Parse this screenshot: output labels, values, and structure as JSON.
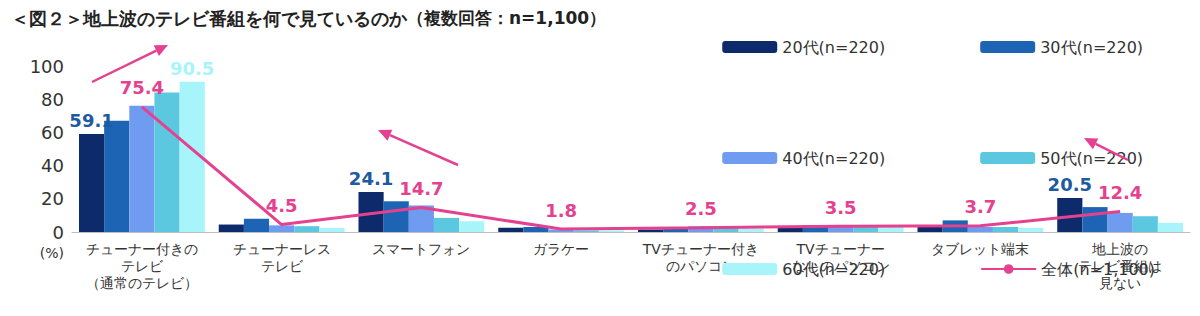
{
  "chart_data": {
    "type": "bar",
    "title": "＜図２＞地上波のテレビ番組を何で見ているのか",
    "subtitle": "（複数回答：n=1,100）",
    "y_label": "(%)",
    "categories": [
      "チューナー付きの\nテレビ\n（通常のテレビ）",
      "チューナーレス\nテレビ",
      "スマートフォン",
      "ガラケー",
      "TVチューナー付き\nのパソコン",
      "TVチューナー\nなしのパソコン",
      "タブレット端末",
      "地上波の\nテレビ番組は\n見ない"
    ],
    "series": [
      {
        "name": "20代(n=220)",
        "type": "bar",
        "color": "#0d2a6b",
        "values": [
          59.1,
          4.5,
          24.1,
          2.5,
          1.5,
          3,
          3,
          20.5
        ],
        "value_labels": [
          "59.1",
          null,
          "24.1",
          null,
          null,
          null,
          null,
          "20.5"
        ]
      },
      {
        "name": "30代(n=220)",
        "type": "bar",
        "color": "#1e64b4",
        "values": [
          67,
          8,
          18.5,
          3,
          3,
          4,
          7,
          15
        ]
      },
      {
        "name": "40代(n=220)",
        "type": "bar",
        "color": "#6f9cf0",
        "values": [
          76,
          4,
          16,
          1.5,
          3.5,
          3.5,
          3,
          11.5
        ]
      },
      {
        "name": "50代(n=220)",
        "type": "bar",
        "color": "#5bc8e0",
        "values": [
          84,
          3.5,
          8.5,
          1,
          2.5,
          4,
          3,
          9.5
        ]
      },
      {
        "name": "60代(n=220)",
        "type": "bar",
        "color": "#a8f4fb",
        "values": [
          90.5,
          2.5,
          6.5,
          1,
          2,
          3,
          2.5,
          5.5
        ],
        "value_labels": [
          "90.5",
          null,
          null,
          null,
          null,
          null,
          null,
          null
        ]
      },
      {
        "name": "全体(n=1,100)",
        "type": "line",
        "color": "#e4418f",
        "data_labels": true,
        "values": [
          75.4,
          4.5,
          14.7,
          1.8,
          2.5,
          3.5,
          3.7,
          12.4
        ]
      }
    ],
    "ylim": [
      0,
      100
    ],
    "yticks": [
      0,
      20,
      40,
      60,
      80,
      100
    ],
    "grid": false,
    "legend": "upper right"
  }
}
